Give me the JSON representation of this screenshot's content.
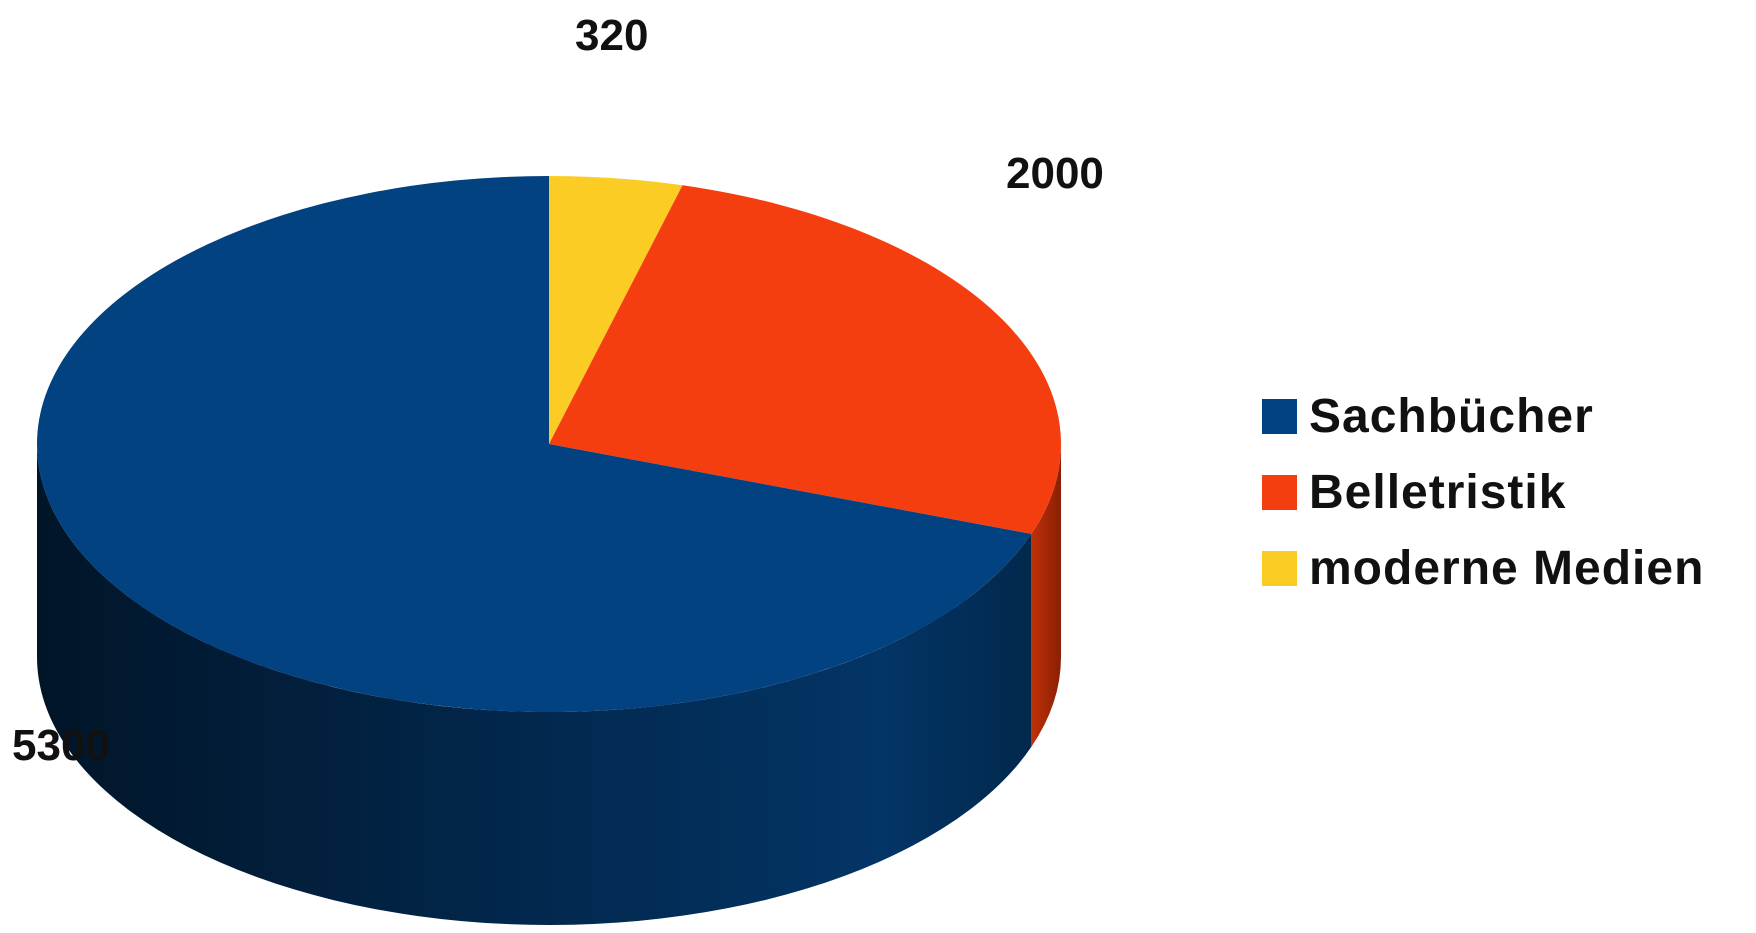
{
  "chart_data": {
    "type": "pie",
    "categories": [
      "Sachbücher",
      "Belletristik",
      "moderne Medien"
    ],
    "values": [
      5300,
      2000,
      320
    ],
    "data_labels": [
      "5300",
      "2000",
      "320"
    ],
    "colors": [
      "#024280",
      "#f53e10",
      "#fbcd24"
    ],
    "style": "3d",
    "legend_position": "right"
  }
}
